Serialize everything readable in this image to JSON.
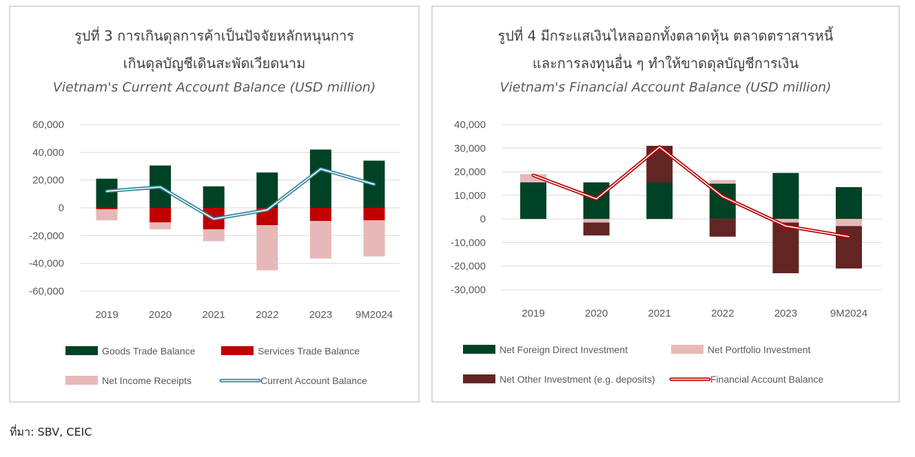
{
  "source_text": "ที่มา: SBV, CEIC",
  "chart_data": [
    {
      "type": "bar",
      "title_th": [
        "รูปที่ 3 การเกินดุลการค้าเป็นปัจจัยหลักหนุนการ",
        "เกินดุลบัญชีเดินสะพัดเวียดนาม"
      ],
      "title": "Vietnam's Current Account Balance (USD million)",
      "categories": [
        "2019",
        "2020",
        "2021",
        "2022",
        "2023",
        "9M2024"
      ],
      "ylim": [
        -60000,
        60000
      ],
      "yticks": [
        "60,000",
        "40,000",
        "20,000",
        "0",
        "-20,000",
        "-40,000",
        "-60,000"
      ],
      "stacked": true,
      "series": [
        {
          "name": "Goods Trade Balance",
          "kind": "bar",
          "color": "#004225",
          "values": [
            21000,
            30500,
            15500,
            25500,
            42000,
            34000
          ]
        },
        {
          "name": "Services Trade Balance",
          "kind": "bar",
          "color": "#c00000",
          "values": [
            -1000,
            -10500,
            -15500,
            -12500,
            -9500,
            -9000
          ]
        },
        {
          "name": "Net Income Receipts",
          "kind": "bar",
          "color": "#e6b9b8",
          "values": [
            -8000,
            -5000,
            -8500,
            -32500,
            -27000,
            -26000
          ]
        },
        {
          "name": "Current Account Balance",
          "kind": "line",
          "color": "#31849b",
          "values": [
            12000,
            15000,
            -8000,
            -1500,
            28000,
            17000
          ]
        }
      ],
      "legend": "bottom"
    },
    {
      "type": "bar",
      "title_th": [
        "รูปที่ 4 มีกระแสเงินไหลออกทั้งตลาดหุ้น ตลาดตราสารหนี้",
        "และการลงทุนอื่น ๆ ทำให้ขาดดุลบัญชีการเงิน"
      ],
      "title": "Vietnam's Financial Account Balance (USD million)",
      "categories": [
        "2019",
        "2020",
        "2021",
        "2022",
        "2023",
        "9M2024"
      ],
      "ylim": [
        -30000,
        40000
      ],
      "yticks": [
        "40,000",
        "30,000",
        "20,000",
        "10,000",
        "0",
        "-10,000",
        "-20,000",
        "-30,000"
      ],
      "stacked": true,
      "series": [
        {
          "name": "Net Foreign Direct Investment",
          "kind": "bar",
          "color": "#004225",
          "values": [
            15500,
            15500,
            15500,
            15000,
            19500,
            13500
          ]
        },
        {
          "name": "Net Portfolio Investment",
          "kind": "bar",
          "color": "#e6b9b8",
          "values": [
            3500,
            -1500,
            0,
            1500,
            -1500,
            -3000
          ]
        },
        {
          "name": "Net Other Investment (e.g. deposits)",
          "kind": "bar",
          "color": "#632523",
          "values": [
            0,
            -5500,
            15500,
            -7500,
            -21500,
            -18000
          ]
        },
        {
          "name": "Financial Account Balance",
          "kind": "line",
          "color": "#c00000",
          "values": [
            18500,
            8500,
            30500,
            9500,
            -3000,
            -7500
          ]
        }
      ],
      "legend": "bottom"
    }
  ]
}
